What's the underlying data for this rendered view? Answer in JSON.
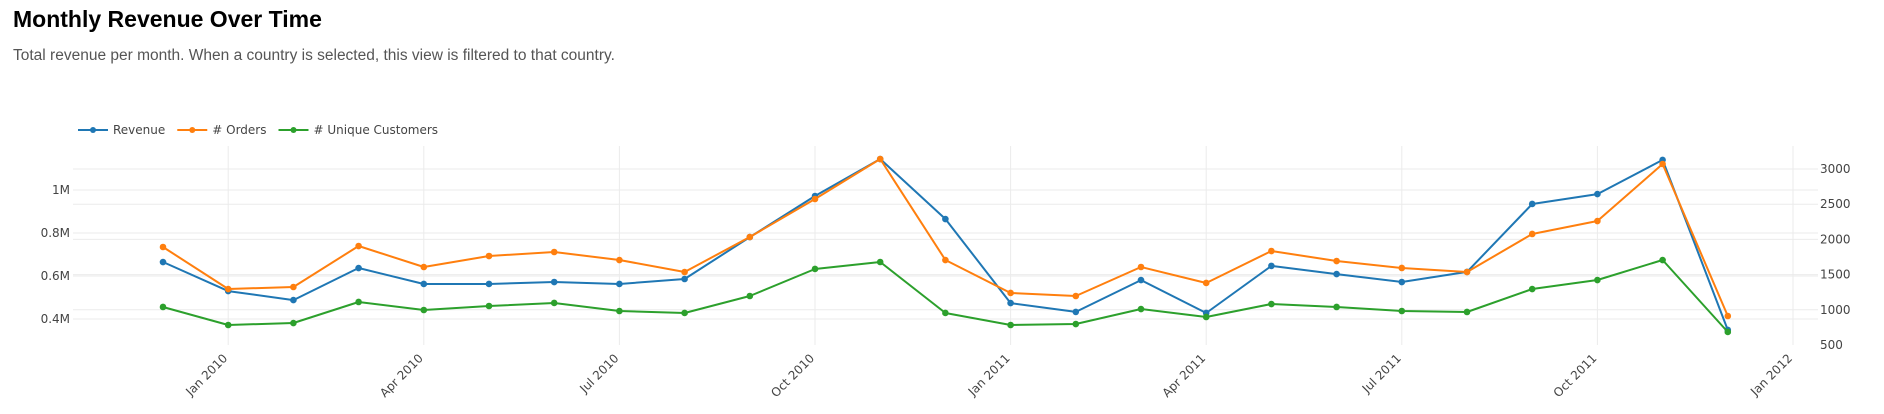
{
  "header": {
    "title": "Monthly Revenue Over Time",
    "subtitle": "Total revenue per month. When a country is selected, this view is filtered to that country."
  },
  "chart_data": {
    "type": "line",
    "title": "Monthly Revenue Over Time",
    "xlabel": "",
    "ylabel": "",
    "y2label": "",
    "legend_position": "top-left",
    "grid": true,
    "x": [
      "Dec 2009",
      "Jan 2010",
      "Feb 2010",
      "Mar 2010",
      "Apr 2010",
      "May 2010",
      "Jun 2010",
      "Jul 2010",
      "Aug 2010",
      "Sep 2010",
      "Oct 2010",
      "Nov 2010",
      "Dec 2010",
      "Jan 2011",
      "Feb 2011",
      "Mar 2011",
      "Apr 2011",
      "May 2011",
      "Jun 2011",
      "Jul 2011",
      "Aug 2011",
      "Sep 2011",
      "Oct 2011",
      "Nov 2011",
      "Dec 2011"
    ],
    "x_ticks": [
      "Jan 2010",
      "Apr 2010",
      "Jul 2010",
      "Oct 2010",
      "Jan 2011",
      "Apr 2011",
      "Jul 2011",
      "Oct 2011",
      "Jan 2012"
    ],
    "y_ticks_left": [
      "0.4M",
      "0.6M",
      "0.8M",
      "1M"
    ],
    "y_ticks_right": [
      "500",
      "1000",
      "1500",
      "2000",
      "2500",
      "3000"
    ],
    "series": [
      {
        "name": "Revenue",
        "axis": "left",
        "color": "#1f77b4",
        "values": [
          665000,
          530000,
          488000,
          637000,
          563000,
          563000,
          572000,
          563000,
          586000,
          781000,
          972000,
          1144000,
          865000,
          474000,
          433000,
          581000,
          428000,
          647000,
          609000,
          572000,
          619000,
          935000,
          981000,
          1140000,
          349000
        ]
      },
      {
        "name": "# Orders",
        "axis": "right",
        "color": "#ff7f0e",
        "values": [
          1892,
          1295,
          1324,
          1906,
          1608,
          1764,
          1821,
          1707,
          1537,
          2034,
          2574,
          3142,
          1707,
          1239,
          1196,
          1608,
          1381,
          1835,
          1693,
          1594,
          1537,
          2077,
          2261,
          3071,
          912
        ]
      },
      {
        "name": "# Unique Customers",
        "axis": "right",
        "color": "#2ca02c",
        "values": [
          1040,
          784,
          812,
          1111,
          997,
          1054,
          1097,
          983,
          955,
          1196,
          1580,
          1679,
          955,
          784,
          798,
          1011,
          898,
          1082,
          1040,
          983,
          969,
          1295,
          1423,
          1707,
          685
        ]
      }
    ]
  }
}
